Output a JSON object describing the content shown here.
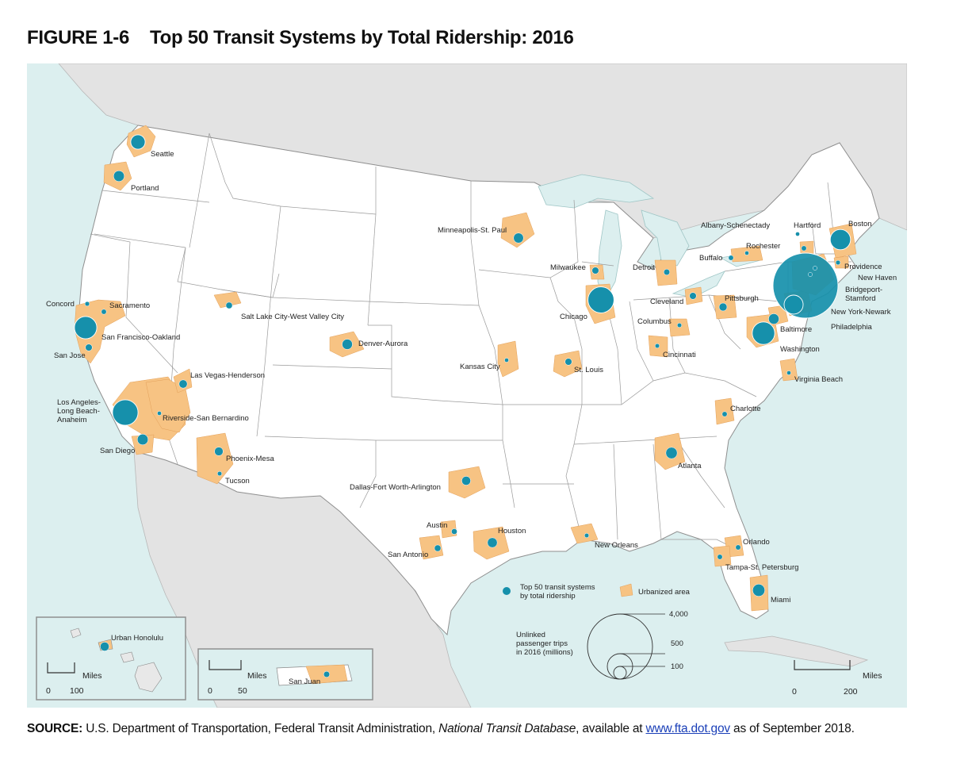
{
  "figure": {
    "number": "FIGURE 1-6",
    "title": "Top 50 Transit Systems by Total Ridership: 2016"
  },
  "colors": {
    "ocean": "#dcefef",
    "land_us": "#ffffff",
    "land_other": "#e3e3e3",
    "lakes": "#dcefef",
    "urbanized": "#f7c383",
    "transit_dot": "#1690ab",
    "borders": "#9a9a9a"
  },
  "cities": [
    {
      "name": "Seattle",
      "value": 195
    },
    {
      "name": "Portland",
      "value": 110
    },
    {
      "name": "Sacramento",
      "value": 25
    },
    {
      "name": "Concord",
      "value": 20
    },
    {
      "name": "San Francisco-Oakland",
      "value": 470
    },
    {
      "name": "San Jose",
      "value": 45
    },
    {
      "name": "Los Angeles-Long Beach-Anaheim",
      "value": 620
    },
    {
      "name": "Riverside-San Bernardino",
      "value": 15
    },
    {
      "name": "San Diego",
      "value": 110
    },
    {
      "name": "Las Vegas-Henderson",
      "value": 65
    },
    {
      "name": "Phoenix-Mesa",
      "value": 70
    },
    {
      "name": "Tucson",
      "value": 18
    },
    {
      "name": "Salt Lake City-West Valley City",
      "value": 40
    },
    {
      "name": "Denver-Aurora",
      "value": 100
    },
    {
      "name": "Minneapolis-St. Paul",
      "value": 95
    },
    {
      "name": "Kansas City",
      "value": 15
    },
    {
      "name": "Dallas-Fort Worth-Arlington",
      "value": 75
    },
    {
      "name": "Austin",
      "value": 30
    },
    {
      "name": "San Antonio",
      "value": 40
    },
    {
      "name": "Houston",
      "value": 90
    },
    {
      "name": "New Orleans",
      "value": 18
    },
    {
      "name": "St. Louis",
      "value": 45
    },
    {
      "name": "Milwaukee",
      "value": 45
    },
    {
      "name": "Chicago",
      "value": 640
    },
    {
      "name": "Detroit",
      "value": 35
    },
    {
      "name": "Cleveland",
      "value": 45
    },
    {
      "name": "Columbus",
      "value": 18
    },
    {
      "name": "Cincinnati",
      "value": 18
    },
    {
      "name": "Pittsburgh",
      "value": 60
    },
    {
      "name": "Buffalo",
      "value": 25
    },
    {
      "name": "Rochester",
      "value": 15
    },
    {
      "name": "Albany-Schenectady",
      "value": 15
    },
    {
      "name": "Hartford",
      "value": 25
    },
    {
      "name": "Boston",
      "value": 390
    },
    {
      "name": "Providence",
      "value": 20
    },
    {
      "name": "New Haven",
      "value": 12
    },
    {
      "name": "Bridgeport-Stamford",
      "value": 12
    },
    {
      "name": "New York-Newark",
      "value": 4000
    },
    {
      "name": "Philadelphia",
      "value": 340
    },
    {
      "name": "Baltimore",
      "value": 105
    },
    {
      "name": "Washington",
      "value": 480
    },
    {
      "name": "Virginia Beach",
      "value": 15
    },
    {
      "name": "Charlotte",
      "value": 25
    },
    {
      "name": "Atlanta",
      "value": 125
    },
    {
      "name": "Orlando",
      "value": 25
    },
    {
      "name": "Tampa-St. Petersburg",
      "value": 25
    },
    {
      "name": "Miami",
      "value": 140
    },
    {
      "name": "Urban Honolulu",
      "value": 75
    },
    {
      "name": "San Juan",
      "value": 35
    }
  ],
  "legend": {
    "dot_label_line1": "Top 50 transit systems",
    "dot_label_line2": "by total ridership",
    "urbanized_label": "Urbanized area",
    "size_title_line1": "Unlinked",
    "size_title_line2": "passenger trips",
    "size_title_line3": "in 2016 (millions)",
    "size_values": [
      "4,000",
      "500",
      "100"
    ]
  },
  "scales": {
    "main": {
      "unit": "Miles",
      "start": "0",
      "end": "200"
    },
    "hawaii": {
      "unit": "Miles",
      "start": "0",
      "end": "100"
    },
    "puerto_rico": {
      "unit": "Miles",
      "start": "0",
      "end": "50"
    }
  },
  "source": {
    "label": "SOURCE:",
    "text_before": "U.S. Department of Transportation, Federal Transit Administration,",
    "database": "National Transit Database",
    "text_middle": ", available at",
    "link": "www.fta.dot.gov",
    "text_after": "as of September 2018."
  }
}
